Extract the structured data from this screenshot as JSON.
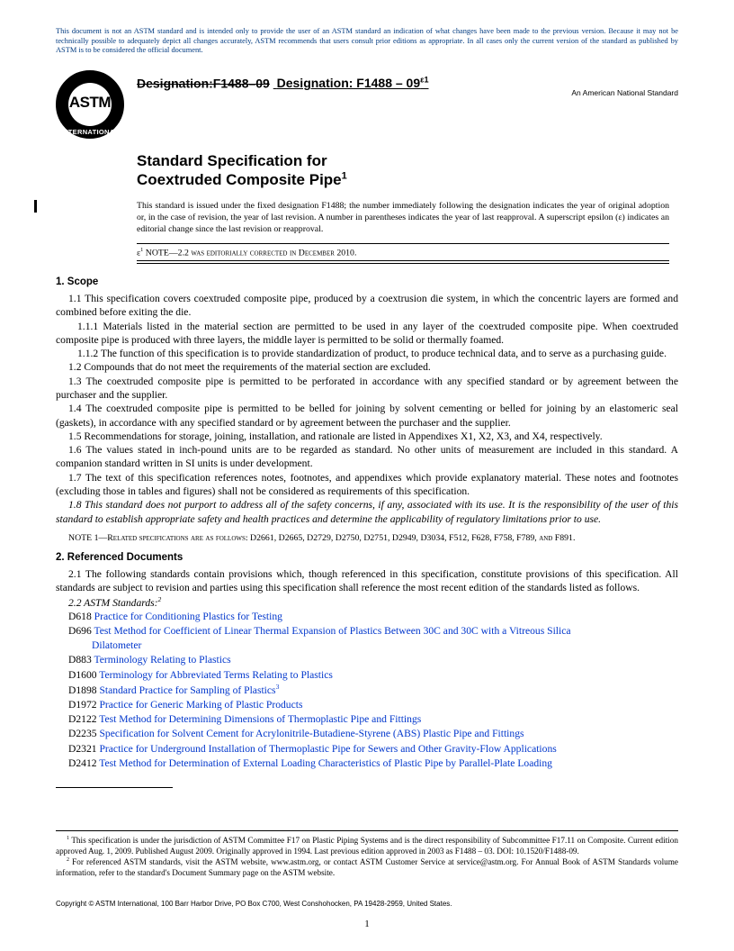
{
  "colors": {
    "link": "#0036cc",
    "disclaimer": "#003a80",
    "text": "#000000",
    "bg": "#ffffff"
  },
  "disclaimer": "This document is not an ASTM standard and is intended only to provide the user of an ASTM standard an indication of what changes have been made to the previous version. Because it may not be technically possible to adequately depict all changes accurately, ASTM recommends that users consult prior editions as appropriate. In all cases only the current version of the standard as published by ASTM is to be considered the official document.",
  "logo": {
    "top": "ASTM",
    "bottom": "INTERNATIONAL"
  },
  "ans": "An American National Standard",
  "designation": {
    "old": "Designation:F1488–09",
    "new_prefix": "Designation: F1488 – 09",
    "epsilon": "ε1"
  },
  "title": {
    "line1": "Standard Specification for",
    "line2": "Coextruded Composite Pipe",
    "sup": "1"
  },
  "issuance": "This standard is issued under the fixed designation F1488; the number immediately following the designation indicates the year of original adoption or, in the case of revision, the year of last revision. A number in parentheses indicates the year of last reapproval. A superscript epsilon (ε) indicates an editorial change since the last revision or reapproval.",
  "eps_note_prefix": "ε",
  "eps_note_sup": "1",
  "eps_note": " NOTE—2.2 was editorially corrected in December 2010.",
  "sections": {
    "scope_head": "1. Scope",
    "scope": [
      "1.1 This specification covers coextruded composite pipe, produced by a coextrusion die system, in which the concentric layers are formed and combined before exiting the die.",
      "1.1.1 Materials listed in the material section are permitted to be used in any layer of the coextruded composite pipe. When coextruded composite pipe is produced with three layers, the middle layer is permitted to be solid or thermally foamed.",
      "1.1.2 The function of this specification is to provide standardization of product, to produce technical data, and to serve as a purchasing guide.",
      "1.2 Compounds that do not meet the requirements of the material section are excluded.",
      "1.3 The coextruded composite pipe is permitted to be perforated in accordance with any specified standard or by agreement between the purchaser and the supplier.",
      "1.4 The coextruded composite pipe is permitted to be belled for joining by solvent cementing or belled for joining by an elastomeric seal (gaskets), in accordance with any specified standard or by agreement between the purchaser and the supplier.",
      "1.5 Recommendations for storage, joining, installation, and rationale are listed in Appendixes X1, X2, X3, and X4, respectively.",
      "1.6 The values stated in inch-pound units are to be regarded as standard. No other units of measurement are included in this standard. A companion standard written in SI units is under development.",
      "1.7 The text of this specification references notes, footnotes, and appendixes which provide explanatory material. These notes and footnotes (excluding those in tables and figures) shall not be considered as requirements of this specification.",
      "1.8 This standard does not purport to address all of the safety concerns, if any, associated with its use. It is the responsibility of the user of this standard to establish appropriate safety and health practices and determine the applicability of regulatory limitations prior to use."
    ],
    "note1": "NOTE 1—Related specifications are as follows: D2661, D2665, D2729, D2750, D2751, D2949, D3034, F512, F628, F758, F789, and F891.",
    "ref_head": "2. Referenced Documents",
    "ref_intro": "2.1 The following standards contain provisions which, though referenced in this specification, constitute provisions of this specification. All standards are subject to revision and parties using this specification shall reference the most recent edition of the standards listed as follows.",
    "ref_astm_label": "2.2 ASTM Standards:",
    "ref_astm_sup": "2",
    "standards": [
      {
        "code": "D618",
        "title": "Practice for Conditioning Plastics for Testing"
      },
      {
        "code": "D696",
        "title": "Test Method for Coefficient of Linear Thermal Expansion of Plastics Between 30C and 30C with a Vitreous Silica",
        "cont": "Dilatometer"
      },
      {
        "code": "D883",
        "title": "Terminology Relating to Plastics"
      },
      {
        "code": "D1600",
        "title": "Terminology for Abbreviated Terms Relating to Plastics"
      },
      {
        "code": "D1898",
        "title": "Standard Practice for Sampling of Plastics",
        "sup": "3"
      },
      {
        "code": "D1972",
        "title": "Practice for Generic Marking of Plastic Products"
      },
      {
        "code": "D2122",
        "title": "Test Method for Determining Dimensions of Thermoplastic Pipe and Fittings"
      },
      {
        "code": "D2235",
        "title": "Specification for Solvent Cement for Acrylonitrile-Butadiene-Styrene (ABS) Plastic Pipe and Fittings"
      },
      {
        "code": "D2321",
        "title": "Practice for Underground Installation of Thermoplastic Pipe for Sewers and Other Gravity-Flow Applications"
      },
      {
        "code": "D2412",
        "title": "Test Method for Determination of External Loading Characteristics of Plastic Pipe by Parallel-Plate Loading"
      }
    ]
  },
  "footnotes": {
    "f1": " This specification is under the jurisdiction of ASTM Committee F17 on Plastic Piping Systems and is the direct responsibility of Subcommittee F17.11 on Composite. Current edition approved Aug. 1, 2009. Published August 2009. Originally approved in 1994. Last previous edition approved in 2003 as F1488 – 03. DOI: 10.1520/F1488-09.",
    "f2": " For referenced ASTM standards, visit the ASTM website, www.astm.org, or contact ASTM Customer Service at service@astm.org. For Annual Book of ASTM Standards volume information, refer to the standard's Document Summary page on the ASTM website."
  },
  "copyright": "Copyright © ASTM International, 100 Barr Harbor Drive, PO Box C700, West Conshohocken, PA 19428-2959, United States.",
  "page": "1"
}
